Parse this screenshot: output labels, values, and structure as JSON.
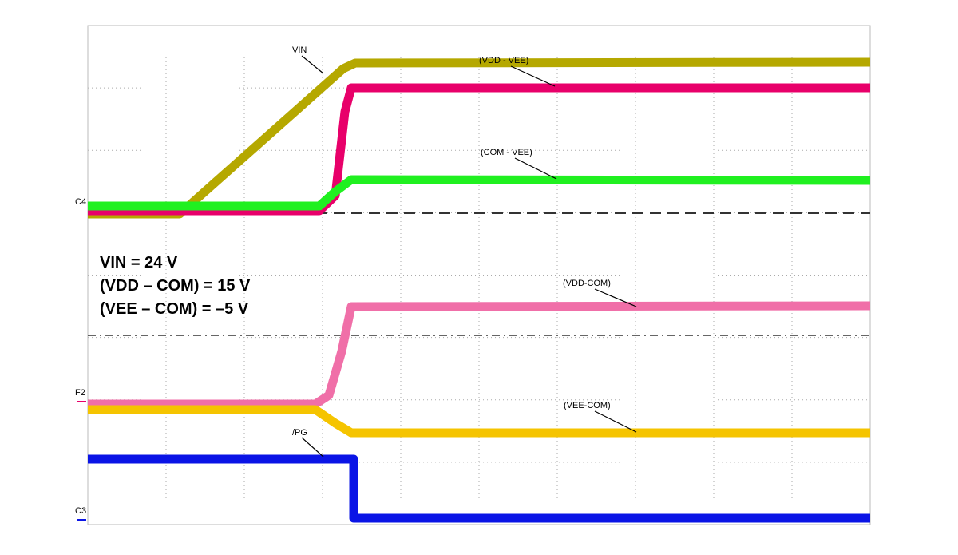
{
  "trace_labels": {
    "vin": "VIN",
    "vdd_vee": "(VDD - VEE)",
    "com_vee": "(COM - VEE)",
    "vdd_com": "(VDD-COM)",
    "vee_com": "(VEE-COM)",
    "pg": "/PG"
  },
  "channel_markers": {
    "c4": "C4",
    "f2": "F2",
    "c3": "C3"
  },
  "annotation": [
    "VIN = 24 V",
    "(VDD – COM) = 15 V",
    "(VEE – COM) = –5 V"
  ]
}
